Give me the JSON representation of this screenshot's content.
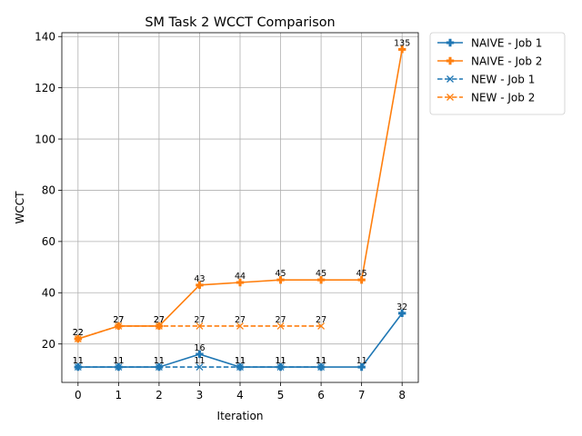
{
  "chart_data": {
    "type": "line",
    "title": "SM Task 2 WCCT Comparison",
    "xlabel": "Iteration",
    "ylabel": "WCCT",
    "xlim": [
      -0.4,
      8.4
    ],
    "ylim": [
      5,
      141.5
    ],
    "xticks": [
      0,
      1,
      2,
      3,
      4,
      5,
      6,
      7,
      8
    ],
    "yticks": [
      20,
      40,
      60,
      80,
      100,
      120,
      140
    ],
    "grid": true,
    "legend_position": "outside-top-right",
    "series": [
      {
        "name": "NAIVE - Job 1",
        "color": "#1f77b4",
        "linestyle": "solid",
        "marker": "plus-filled",
        "x": [
          0,
          1,
          2,
          3,
          4,
          5,
          6,
          7,
          8
        ],
        "values": [
          11,
          11,
          11,
          16,
          11,
          11,
          11,
          11,
          32
        ]
      },
      {
        "name": "NAIVE - Job 2",
        "color": "#ff7f0e",
        "linestyle": "solid",
        "marker": "plus-filled",
        "x": [
          0,
          1,
          2,
          3,
          4,
          5,
          6,
          7,
          8
        ],
        "values": [
          22,
          27,
          27,
          43,
          44,
          45,
          45,
          45,
          135
        ]
      },
      {
        "name": "NEW - Job 1",
        "color": "#1f77b4",
        "linestyle": "dashed",
        "marker": "x",
        "x": [
          0,
          1,
          2,
          3,
          4,
          5,
          6
        ],
        "values": [
          11,
          11,
          11,
          11,
          11,
          11,
          11
        ]
      },
      {
        "name": "NEW - Job 2",
        "color": "#ff7f0e",
        "linestyle": "dashed",
        "marker": "x",
        "x": [
          0,
          1,
          2,
          3,
          4,
          5,
          6
        ],
        "values": [
          22,
          27,
          27,
          27,
          27,
          27,
          27
        ]
      }
    ]
  }
}
